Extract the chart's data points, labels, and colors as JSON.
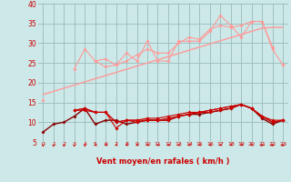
{
  "background_color": "#cce8e8",
  "grid_color": "#99bbbb",
  "x_values": [
    0,
    1,
    2,
    3,
    4,
    5,
    6,
    7,
    8,
    9,
    10,
    11,
    12,
    13,
    14,
    15,
    16,
    17,
    18,
    19,
    20,
    21,
    22,
    23
  ],
  "light_series": [
    [
      15.5,
      null,
      null,
      23.5,
      28.5,
      25.5,
      24.0,
      24.5,
      27.5,
      25.5,
      30.5,
      25.5,
      25.5,
      30.5,
      30.5,
      30.5,
      33.0,
      37.0,
      34.5,
      31.5,
      35.5,
      35.5,
      28.5,
      24.5
    ],
    [
      null,
      null,
      null,
      null,
      null,
      25.5,
      26.0,
      24.5,
      25.5,
      27.0,
      28.5,
      27.5,
      27.5,
      30.0,
      31.5,
      31.0,
      33.5,
      34.5,
      34.0,
      34.5,
      35.5,
      35.5,
      29.0,
      null
    ]
  ],
  "light_flat": [
    null,
    null,
    null,
    null,
    null,
    null,
    null,
    null,
    null,
    null,
    null,
    null,
    null,
    null,
    null,
    null,
    null,
    null,
    null,
    null,
    null,
    null,
    null,
    24.5
  ],
  "light_trend": [
    17.0,
    17.8,
    18.6,
    19.4,
    20.2,
    21.0,
    21.8,
    22.6,
    23.4,
    24.2,
    25.0,
    25.8,
    26.6,
    27.4,
    28.2,
    29.0,
    29.8,
    30.6,
    31.4,
    32.2,
    33.0,
    33.8,
    34.0,
    34.0
  ],
  "dark_series": [
    [
      7.5,
      9.5,
      10.0,
      11.5,
      13.5,
      9.5,
      10.5,
      10.5,
      9.5,
      10.0,
      10.5,
      10.5,
      10.5,
      11.5,
      12.0,
      12.0,
      12.5,
      13.0,
      13.5,
      14.5,
      13.5,
      11.0,
      9.5,
      10.5
    ],
    [
      null,
      null,
      null,
      13.0,
      13.0,
      12.5,
      12.5,
      8.5,
      10.5,
      10.0,
      10.5,
      10.5,
      10.5,
      11.5,
      12.0,
      12.5,
      13.0,
      13.5,
      14.0,
      14.5,
      13.5,
      11.5,
      10.0,
      10.5
    ],
    [
      null,
      null,
      null,
      13.0,
      13.5,
      12.5,
      12.5,
      10.0,
      10.5,
      10.5,
      10.5,
      10.5,
      11.0,
      11.5,
      12.0,
      12.5,
      12.5,
      13.0,
      13.5,
      14.5,
      13.5,
      11.5,
      10.5,
      10.5
    ],
    [
      null,
      null,
      null,
      13.0,
      13.5,
      12.5,
      12.5,
      10.0,
      10.5,
      10.5,
      11.0,
      11.0,
      11.5,
      12.0,
      12.5,
      12.5,
      13.0,
      13.5,
      14.0,
      14.5,
      13.5,
      11.5,
      10.0,
      10.5
    ]
  ],
  "color_light": "#ff9999",
  "color_dark": "#cc0000",
  "color_very_dark": "#880000",
  "xlabel": "Vent moyen/en rafales ( km/h )",
  "ylim": [
    5,
    40
  ],
  "xlim": [
    -0.5,
    23.5
  ],
  "yticks": [
    5,
    10,
    15,
    20,
    25,
    30,
    35,
    40
  ],
  "xtick_labels": [
    "0",
    "1",
    "2",
    "3",
    "4",
    "5",
    "6",
    "7",
    "8",
    "9",
    "10",
    "11",
    "12",
    "13",
    "14",
    "15",
    "16",
    "17",
    "18",
    "19",
    "20",
    "21",
    "22",
    "23"
  ],
  "arrow_dirs_deg": [
    0,
    0,
    0,
    0,
    0,
    -45,
    -45,
    -45,
    -45,
    -45,
    -45,
    -45,
    -45,
    -45,
    -45,
    -45,
    -45,
    -45,
    -45,
    -45,
    -45,
    -65,
    -65,
    -65
  ]
}
